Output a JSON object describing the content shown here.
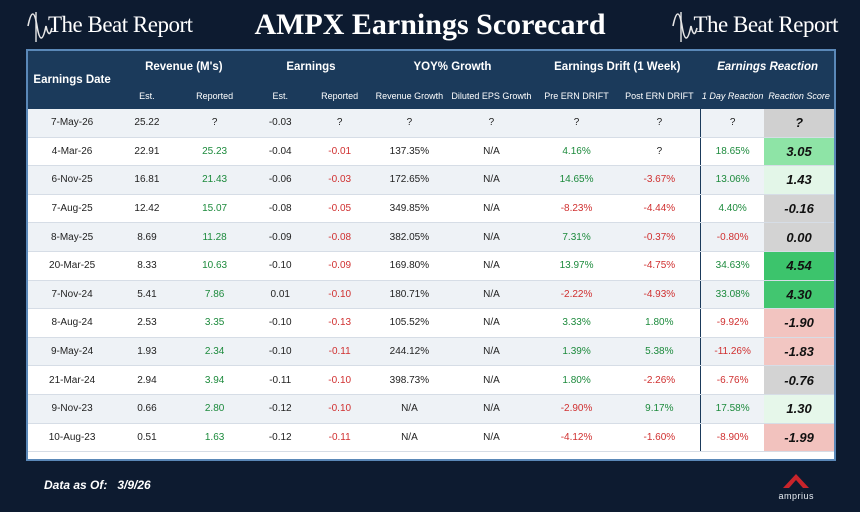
{
  "brand_left": "The Beat Report",
  "brand_right": "The Beat Report",
  "title": "AMPX Earnings Scorecard",
  "headers": {
    "date": "Earnings Date",
    "revenue": "Revenue (M's)",
    "earnings": "Earnings",
    "yoy": "YOY% Growth",
    "drift": "Earnings Drift (1 Week)",
    "reaction": "Earnings Reaction",
    "est": "Est.",
    "reported": "Reported",
    "est2": "Est.",
    "reported2": "Reported",
    "rev_growth": "Revenue Growth",
    "eps_growth": "Diluted EPS Growth",
    "pre": "Pre ERN DRIFT",
    "post": "Post ERN DRIFT",
    "oneday": "1 Day Reaction",
    "rscore": "Reaction Score"
  },
  "rows": [
    {
      "date": "7-May-26",
      "rev_est": "25.22",
      "rev_rep": "?",
      "eps_est": "-0.03",
      "eps_rep": "?",
      "rev_g": "?",
      "eps_g": "?",
      "pre": "?",
      "post": "?",
      "day": "?",
      "score": "?",
      "score_color": "#d0d0d0"
    },
    {
      "date": "4-Mar-26",
      "rev_est": "22.91",
      "rev_rep": "25.23",
      "eps_est": "-0.04",
      "eps_rep": "-0.01",
      "rev_g": "137.35%",
      "eps_g": "N/A",
      "pre": "4.16%",
      "post": "?",
      "day": "18.65%",
      "score": "3.05",
      "score_color": "#8ee4a6"
    },
    {
      "date": "6-Nov-25",
      "rev_est": "16.81",
      "rev_rep": "21.43",
      "eps_est": "-0.06",
      "eps_rep": "-0.03",
      "rev_g": "172.65%",
      "eps_g": "N/A",
      "pre": "14.65%",
      "post": "-3.67%",
      "day": "13.06%",
      "score": "1.43",
      "score_color": "#e3f6e8"
    },
    {
      "date": "7-Aug-25",
      "rev_est": "12.42",
      "rev_rep": "15.07",
      "eps_est": "-0.08",
      "eps_rep": "-0.05",
      "rev_g": "349.85%",
      "eps_g": "N/A",
      "pre": "-8.23%",
      "post": "-4.44%",
      "day": "4.40%",
      "score": "-0.16",
      "score_color": "#d3d3d3"
    },
    {
      "date": "8-May-25",
      "rev_est": "8.69",
      "rev_rep": "11.28",
      "eps_est": "-0.09",
      "eps_rep": "-0.08",
      "rev_g": "382.05%",
      "eps_g": "N/A",
      "pre": "7.31%",
      "post": "-0.37%",
      "day": "-0.80%",
      "score": "0.00",
      "score_color": "#d3d3d3"
    },
    {
      "date": "20-Mar-25",
      "rev_est": "8.33",
      "rev_rep": "10.63",
      "eps_est": "-0.10",
      "eps_rep": "-0.09",
      "rev_g": "169.80%",
      "eps_g": "N/A",
      "pre": "13.97%",
      "post": "-4.75%",
      "day": "34.63%",
      "score": "4.54",
      "score_color": "#3cc46c"
    },
    {
      "date": "7-Nov-24",
      "rev_est": "5.41",
      "rev_rep": "7.86",
      "eps_est": "0.01",
      "eps_rep": "-0.10",
      "rev_g": "180.71%",
      "eps_g": "N/A",
      "pre": "-2.22%",
      "post": "-4.93%",
      "day": "33.08%",
      "score": "4.30",
      "score_color": "#42c670"
    },
    {
      "date": "8-Aug-24",
      "rev_est": "2.53",
      "rev_rep": "3.35",
      "eps_est": "-0.10",
      "eps_rep": "-0.13",
      "rev_g": "105.52%",
      "eps_g": "N/A",
      "pre": "3.33%",
      "post": "1.80%",
      "day": "-9.92%",
      "score": "-1.90",
      "score_color": "#f2c4c0"
    },
    {
      "date": "9-May-24",
      "rev_est": "1.93",
      "rev_rep": "2.34",
      "eps_est": "-0.10",
      "eps_rep": "-0.11",
      "rev_g": "244.12%",
      "eps_g": "N/A",
      "pre": "1.39%",
      "post": "5.38%",
      "day": "-11.26%",
      "score": "-1.83",
      "score_color": "#f2c6c2"
    },
    {
      "date": "21-Mar-24",
      "rev_est": "2.94",
      "rev_rep": "3.94",
      "eps_est": "-0.11",
      "eps_rep": "-0.10",
      "rev_g": "398.73%",
      "eps_g": "N/A",
      "pre": "1.80%",
      "post": "-2.26%",
      "day": "-6.76%",
      "score": "-0.76",
      "score_color": "#d3d3d3"
    },
    {
      "date": "9-Nov-23",
      "rev_est": "0.66",
      "rev_rep": "2.80",
      "eps_est": "-0.12",
      "eps_rep": "-0.10",
      "rev_g": "N/A",
      "eps_g": "N/A",
      "pre": "-2.90%",
      "post": "9.17%",
      "day": "17.58%",
      "score": "1.30",
      "score_color": "#e6f7ea"
    },
    {
      "date": "10-Aug-23",
      "rev_est": "0.51",
      "rev_rep": "1.63",
      "eps_est": "-0.12",
      "eps_rep": "-0.11",
      "rev_g": "N/A",
      "eps_g": "N/A",
      "pre": "-4.12%",
      "post": "-1.60%",
      "day": "-8.90%",
      "score": "-1.99",
      "score_color": "#f2c2be"
    }
  ],
  "footer": {
    "label": "Data as Of:",
    "date": "3/9/26"
  },
  "company_logo": "amprius"
}
